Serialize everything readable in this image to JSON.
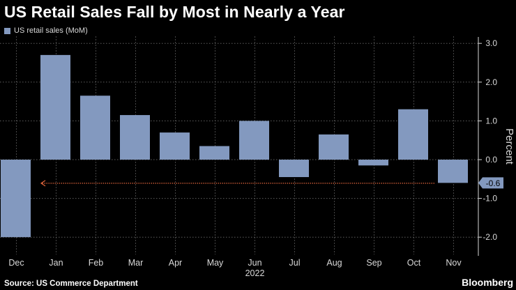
{
  "title": "US Retail Sales Fall by Most in Nearly a Year",
  "source": "Source: US Commerce Department",
  "brand": "Bloomberg",
  "colors": {
    "background": "#000000",
    "bar": "#8399bf",
    "grid": "#5e5e5e",
    "axis_text": "#d9d9d9",
    "reference_arrow": "#e2663c"
  },
  "chart_data": {
    "type": "bar",
    "series": [
      {
        "name": "US retail sales (MoM)",
        "values": [
          -2.0,
          2.7,
          1.65,
          1.15,
          0.7,
          0.35,
          1.0,
          -0.45,
          0.65,
          -0.15,
          1.3,
          -0.6
        ]
      }
    ],
    "categories": [
      "Dec",
      "Jan",
      "Feb",
      "Mar",
      "Apr",
      "May",
      "Jun",
      "Jul",
      "Aug",
      "Sep",
      "Oct",
      "Nov"
    ],
    "x_tick_labels": [
      "Dec",
      "Jan",
      "Feb",
      "Mar",
      "Apr",
      "May",
      "Jun",
      "Jul",
      "Aug",
      "Sep",
      "Oct",
      "Nov"
    ],
    "x_group_label": "2022",
    "ylabel": "Percent",
    "ylim": [
      -2.5,
      3.2
    ],
    "y_ticks": [
      3.0,
      2.0,
      1.0,
      0.0,
      -1.0,
      -2.0
    ],
    "y_tick_labels": [
      "3.0",
      "2.0",
      "1.0",
      "0.0",
      "-1.0",
      "-2.0"
    ],
    "last_value_label": "-0.6",
    "reference_line": {
      "value": -0.6,
      "from": "Nov",
      "to": "Jan",
      "style": "dotted-arrow"
    },
    "grid": true,
    "y_axis_position": "right",
    "legend_position": "top-left"
  }
}
